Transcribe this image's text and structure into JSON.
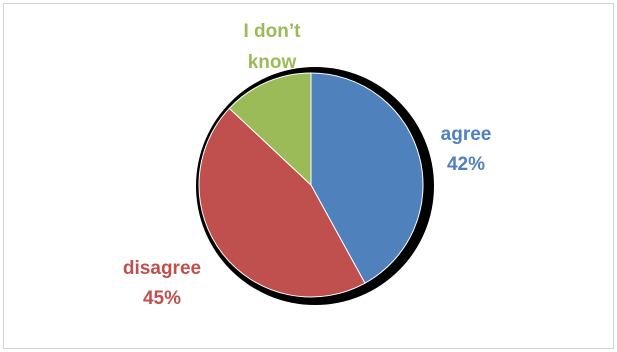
{
  "chart_data": {
    "type": "pie",
    "slices": [
      {
        "label": "agree",
        "value": 42,
        "value_label": "42%",
        "color": "#4F81BD"
      },
      {
        "label": "disagree",
        "value": 45,
        "value_label": "45%",
        "color": "#C0504D"
      },
      {
        "label": "I don’t know",
        "label_lines": [
          "I don’t",
          "know"
        ],
        "value": 13,
        "color": "#9BBB59"
      }
    ],
    "title": "",
    "legend": "none",
    "start_angle": "12 o'clock",
    "direction": "clockwise"
  }
}
